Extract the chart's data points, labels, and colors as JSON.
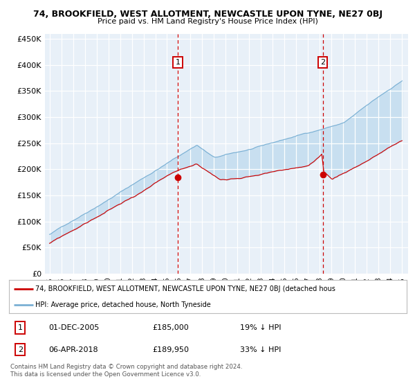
{
  "title": "74, BROOKFIELD, WEST ALLOTMENT, NEWCASTLE UPON TYNE, NE27 0BJ",
  "subtitle": "Price paid vs. HM Land Registry's House Price Index (HPI)",
  "background_color": "#e8f0f8",
  "ylim": [
    0,
    460000
  ],
  "yticks": [
    0,
    50000,
    100000,
    150000,
    200000,
    250000,
    300000,
    350000,
    400000,
    450000
  ],
  "ytick_labels": [
    "£0",
    "£50K",
    "£100K",
    "£150K",
    "£200K",
    "£250K",
    "£300K",
    "£350K",
    "£400K",
    "£450K"
  ],
  "red_line_color": "#cc0000",
  "blue_line_color": "#7ab0d4",
  "fill_color": "#c8dff0",
  "marker1_x": 2005.917,
  "marker1_price": 185000,
  "marker2_x": 2018.25,
  "marker2_price": 189950,
  "legend_line1": "74, BROOKFIELD, WEST ALLOTMENT, NEWCASTLE UPON TYNE, NE27 0BJ (detached hous",
  "legend_line2": "HPI: Average price, detached house, North Tyneside",
  "table_row1_num": "1",
  "table_row1_date": "01-DEC-2005",
  "table_row1_price": "£185,000",
  "table_row1_hpi": "19% ↓ HPI",
  "table_row2_num": "2",
  "table_row2_date": "06-APR-2018",
  "table_row2_price": "£189,950",
  "table_row2_hpi": "33% ↓ HPI",
  "footnote": "Contains HM Land Registry data © Crown copyright and database right 2024.\nThis data is licensed under the Open Government Licence v3.0."
}
